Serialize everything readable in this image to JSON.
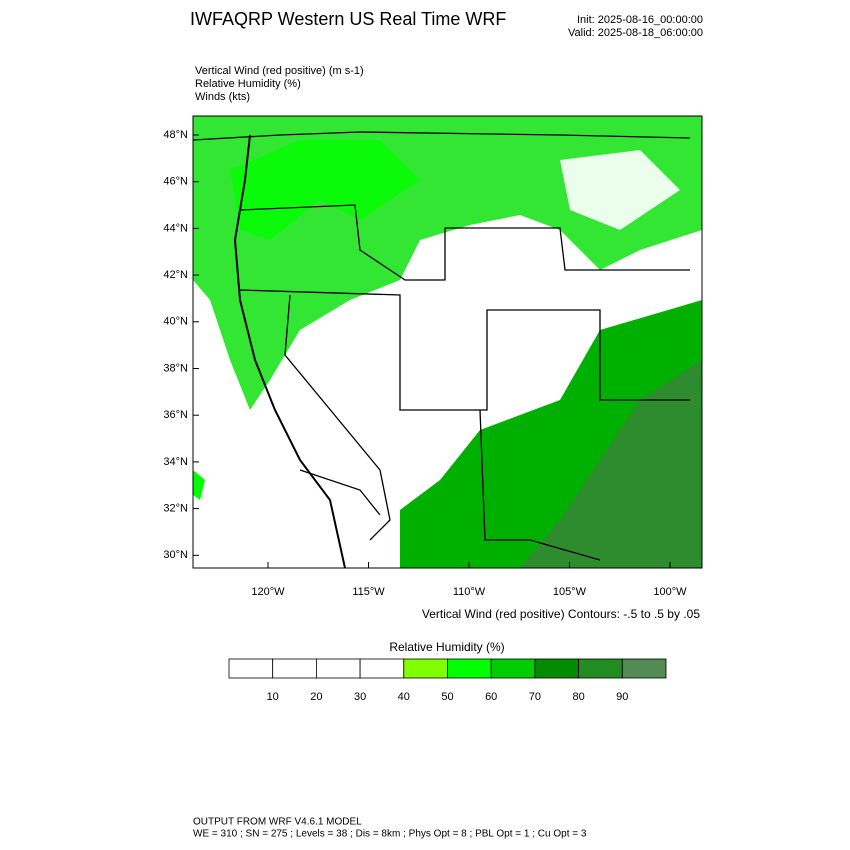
{
  "header": {
    "title": "IWFAQRP Western US Real Time WRF",
    "init": "Init: 2025-08-16_00:00:00",
    "valid": "Valid: 2025-08-18_06:00:00"
  },
  "fields": [
    "Vertical Wind (red positive)   (m s-1)",
    "Relative Humidity   (%)",
    "Winds   (kts)"
  ],
  "map": {
    "lat_labels": [
      "48°N",
      "46°N",
      "44°N",
      "42°N",
      "40°N",
      "38°N",
      "36°N",
      "34°N",
      "32°N",
      "30°N"
    ],
    "lon_labels": [
      "120°W",
      "115°W",
      "110°W",
      "105°W",
      "100°W"
    ],
    "contour_note": "Vertical Wind (red positive) Contours: -.5 to .5 by .05"
  },
  "colorbar": {
    "title": "Relative Humidity   (%)",
    "ticks": [
      10,
      20,
      30,
      40,
      50,
      60,
      70,
      80,
      90
    ],
    "colors": [
      "#ffffff",
      "#ffffff",
      "#ffffff",
      "#ffffff",
      "#7fff00",
      "#00ff00",
      "#00cd00",
      "#008b00",
      "#228b22",
      "#548b54"
    ]
  },
  "footer": [
    "OUTPUT FROM WRF V4.6.1 MODEL",
    "WE = 310 ; SN = 275 ; Levels = 38 ; Dis = 8km ; Phys Opt = 8 ; PBL Opt = 1 ; Cu Opt = 3"
  ]
}
